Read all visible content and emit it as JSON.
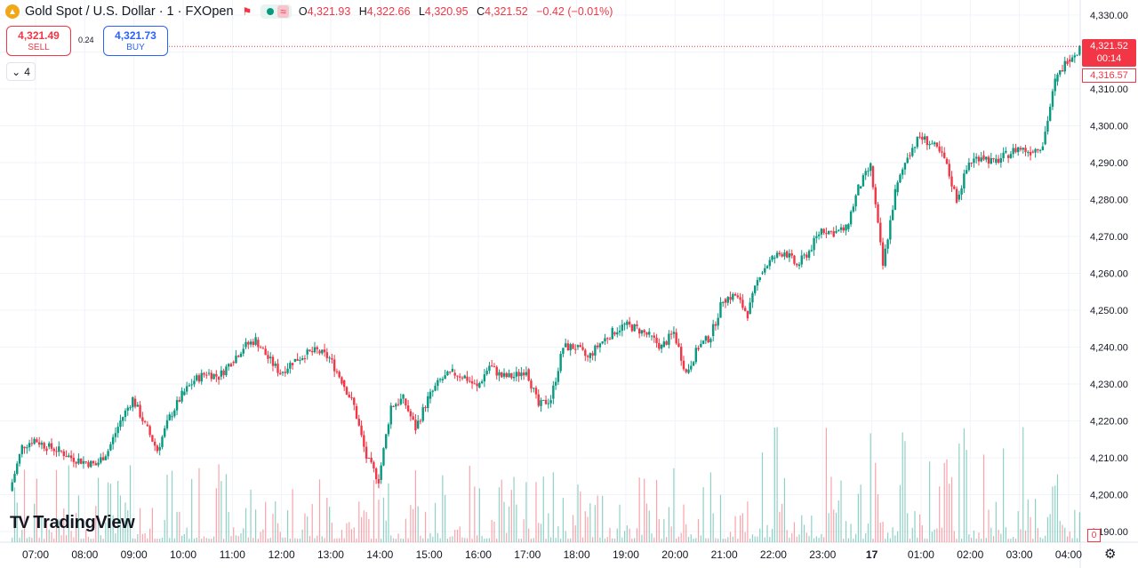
{
  "header": {
    "symbol_title": "Gold Spot / U.S. Dollar · 1 · FXOpen",
    "open_label": "O",
    "open": "4,321.93",
    "high_label": "H",
    "high": "4,322.66",
    "low_label": "L",
    "low": "4,320.95",
    "close_label": "C",
    "close": "4,321.52",
    "change": "−0.42 (−0.01%)"
  },
  "trade": {
    "sell_price": "4,321.49",
    "sell_label": "SELL",
    "spread": "0.24",
    "buy_price": "4,321.73",
    "buy_label": "BUY"
  },
  "indicators_count": "4",
  "price_scale": {
    "last_price": "4,321.52",
    "countdown": "00:14",
    "prev_label": "4,316.57",
    "volume_label": "0"
  },
  "branding": {
    "logo_text": "TradingView"
  },
  "colors": {
    "up": "#089981",
    "down": "#f23645",
    "grid": "#f0f3fa",
    "text": "#131722"
  },
  "chart_data": {
    "type": "line",
    "series_style": "candlestick",
    "y_ticks": [
      "4,190.00",
      "4,200.00",
      "4,210.00",
      "4,220.00",
      "4,230.00",
      "4,240.00",
      "4,250.00",
      "4,260.00",
      "4,270.00",
      "4,280.00",
      "4,290.00",
      "4,300.00",
      "4,310.00",
      "4,320.00",
      "4,330.00"
    ],
    "ylim": [
      4186,
      4333
    ],
    "x_ticks": [
      "07:00",
      "08:00",
      "09:00",
      "10:00",
      "11:00",
      "12:00",
      "13:00",
      "14:00",
      "15:00",
      "16:00",
      "17:00",
      "18:00",
      "19:00",
      "20:00",
      "21:00",
      "22:00",
      "23:00",
      "17",
      "01:00",
      "02:00",
      "03:00",
      "04:00"
    ],
    "x": [
      "06:30",
      "06:45",
      "07:00",
      "07:15",
      "07:30",
      "07:45",
      "08:00",
      "08:15",
      "08:30",
      "08:45",
      "09:00",
      "09:15",
      "09:30",
      "09:45",
      "10:00",
      "10:15",
      "10:30",
      "10:45",
      "11:00",
      "11:15",
      "11:30",
      "11:45",
      "12:00",
      "12:15",
      "12:30",
      "12:45",
      "13:00",
      "13:15",
      "13:30",
      "13:45",
      "14:00",
      "14:15",
      "14:30",
      "14:45",
      "15:00",
      "15:15",
      "15:30",
      "15:45",
      "16:00",
      "16:15",
      "16:30",
      "16:45",
      "17:00",
      "17:15",
      "17:30",
      "17:45",
      "18:00",
      "18:15",
      "18:30",
      "18:45",
      "19:00",
      "19:15",
      "19:30",
      "19:45",
      "20:00",
      "20:15",
      "20:30",
      "20:45",
      "21:00",
      "21:15",
      "21:30",
      "21:45",
      "22:00",
      "22:15",
      "22:30",
      "22:45",
      "23:00",
      "23:15",
      "23:30",
      "23:45",
      "00:00",
      "00:15",
      "00:30",
      "00:45",
      "01:00",
      "01:15",
      "01:30",
      "01:45",
      "02:00",
      "02:15",
      "02:30",
      "02:45",
      "03:00",
      "03:15",
      "03:30",
      "03:45",
      "04:00",
      "04:15"
    ],
    "y": [
      4201,
      4213,
      4215,
      4213,
      4212,
      4210,
      4209,
      4208,
      4212,
      4220,
      4226,
      4219,
      4212,
      4221,
      4227,
      4231,
      4233,
      4232,
      4236,
      4240,
      4242,
      4237,
      4233,
      4236,
      4238,
      4239,
      4237,
      4231,
      4224,
      4210,
      4204,
      4224,
      4226,
      4218,
      4226,
      4231,
      4233,
      4232,
      4229,
      4235,
      4232,
      4232,
      4234,
      4224,
      4226,
      4240,
      4240,
      4237,
      4241,
      4244,
      4246,
      4245,
      4243,
      4240,
      4244,
      4233,
      4240,
      4243,
      4253,
      4254,
      4249,
      4260,
      4264,
      4266,
      4262,
      4266,
      4272,
      4271,
      4272,
      4283,
      4289,
      4262,
      4282,
      4292,
      4297,
      4295,
      4291,
      4280,
      4290,
      4292,
      4290,
      4292,
      4294,
      4293,
      4295,
      4312,
      4318,
      4321
    ],
    "volume_label": "0",
    "last_price": 4321.52,
    "grid": true
  }
}
